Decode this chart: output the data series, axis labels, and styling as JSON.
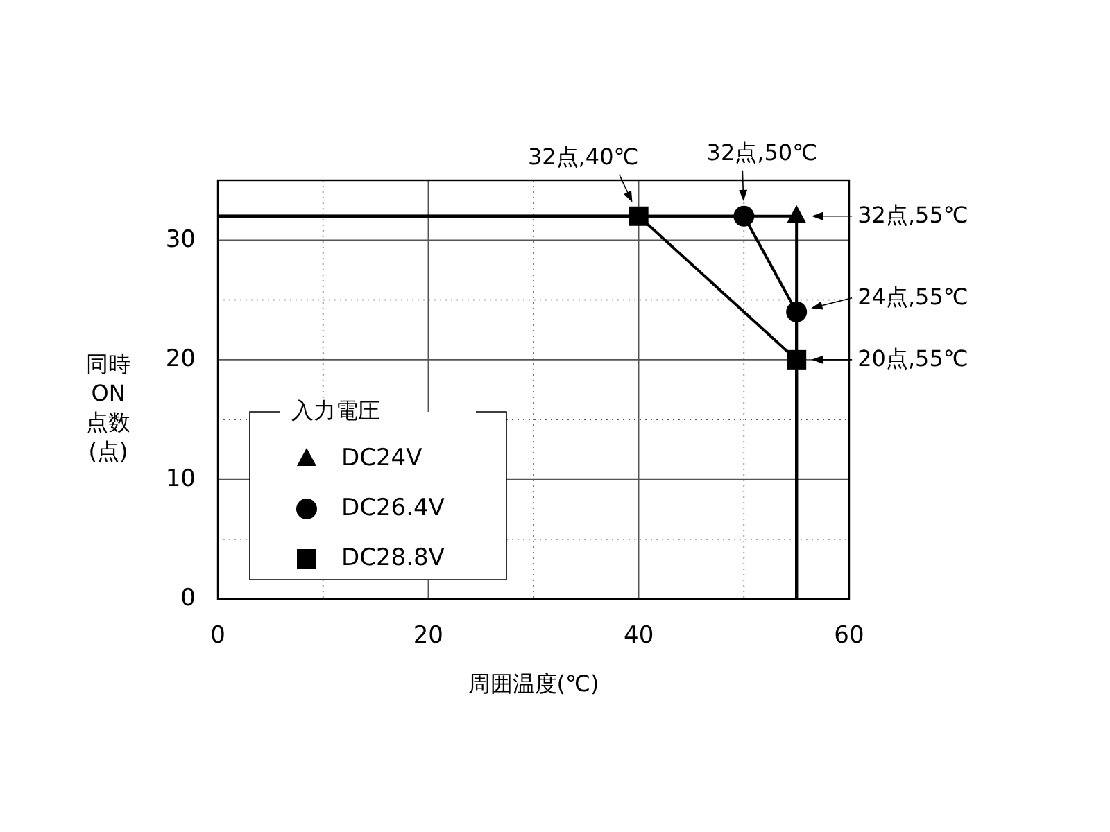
{
  "chart_data": {
    "type": "line",
    "xlabel": "周囲温度(℃)",
    "ylabel": "同時ON点数(点)",
    "legend_title": "入力電圧",
    "xlim": [
      0,
      60
    ],
    "ylim": [
      0,
      35
    ],
    "xticks": [
      0,
      {
        "value": 10,
        "label": null
      },
      20,
      {
        "value": 30,
        "label": null
      },
      40,
      {
        "value": 50,
        "label": null
      },
      60
    ],
    "yticks": [
      0,
      {
        "value": 5,
        "label": null
      },
      10,
      {
        "value": 15,
        "label": null
      },
      20,
      {
        "value": 25,
        "label": null
      },
      30
    ],
    "grid": true,
    "legend": "bottom left",
    "series": [
      {
        "type": "line",
        "color": "#000000",
        "x": [
          0,
          55,
          55
        ],
        "values": [
          32,
          32,
          0
        ]
      },
      {
        "type": "line",
        "color": "#000000",
        "x": [
          0,
          50,
          55,
          55
        ],
        "values": [
          32,
          32,
          24,
          0
        ]
      },
      {
        "type": "line",
        "color": "#000000",
        "x": [
          0,
          40,
          55,
          55
        ],
        "values": [
          32,
          32,
          20,
          0
        ]
      },
      {
        "type": "scatter",
        "name": "DC24V",
        "color": "#000000",
        "marker": "triangle",
        "x": [
          55
        ],
        "values": [
          32
        ]
      },
      {
        "type": "scatter",
        "name": "DC26.4V",
        "color": "#000000",
        "marker": "circle",
        "x": [
          50,
          55
        ],
        "values": [
          32,
          24
        ]
      },
      {
        "type": "scatter",
        "name": "DC28.8V",
        "color": "#000000",
        "marker": "square",
        "x": [
          40,
          55
        ],
        "values": [
          32,
          20
        ]
      }
    ],
    "annotations": [
      {
        "text": "32点,40℃",
        "x": 40,
        "y": 32
      },
      {
        "text": "32点,50℃",
        "x": 50,
        "y": 32
      },
      {
        "text": "32点,55℃",
        "x": 55,
        "y": 32
      },
      {
        "text": "24点,55℃",
        "x": 55,
        "y": 24
      },
      {
        "text": "20点,55℃",
        "x": 55,
        "y": 20
      }
    ]
  }
}
